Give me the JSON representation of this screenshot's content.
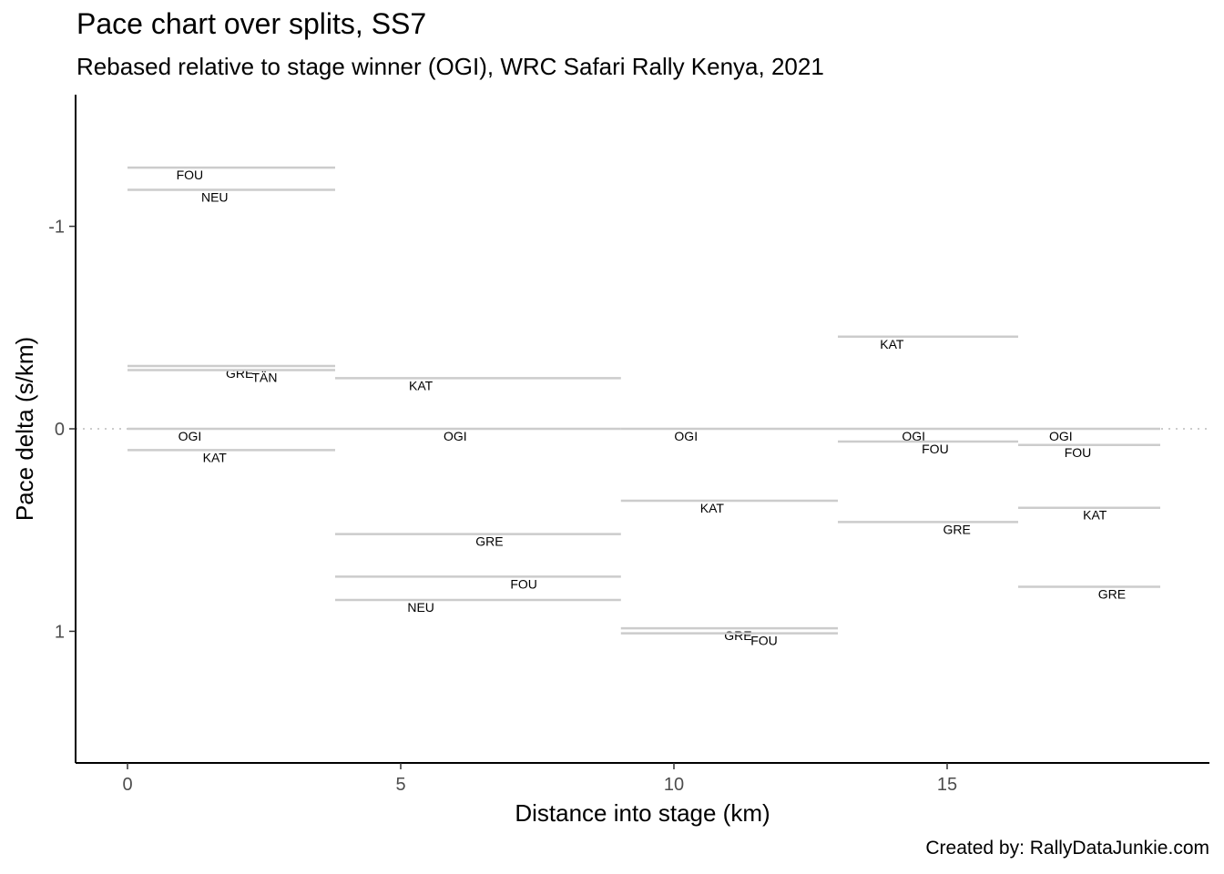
{
  "chart_data": {
    "type": "line",
    "title": "Pace chart over splits, SS7",
    "subtitle": "Rebased relative to stage winner (OGI), WRC Safari Rally Kenya, 2021",
    "xlabel": "Distance into stage (km)",
    "ylabel": "Pace delta (s/km)",
    "caption": "Created by: RallyDataJunkie.com",
    "xlim": [
      -0.95,
      19.8
    ],
    "ylim": [
      1.65,
      -1.65
    ],
    "y_reversed": true,
    "x_ticks": [
      0,
      5,
      10,
      15
    ],
    "y_ticks": [
      -1,
      0,
      1
    ],
    "reference_line": 0,
    "grid": false,
    "segment_color": "#cccccc",
    "segments": [
      {
        "driver": "FOU",
        "x_start": 0,
        "x_end": 3.8,
        "pace_delta": -1.29
      },
      {
        "driver": "NEU",
        "x_start": 0,
        "x_end": 3.8,
        "pace_delta": -1.18
      },
      {
        "driver": "GRE",
        "x_start": 0,
        "x_end": 3.8,
        "pace_delta": -0.31
      },
      {
        "driver": "TÄN",
        "x_start": 0,
        "x_end": 3.8,
        "pace_delta": -0.29
      },
      {
        "driver": "OGI",
        "x_start": 0,
        "x_end": 3.8,
        "pace_delta": 0
      },
      {
        "driver": "KAT",
        "x_start": 0,
        "x_end": 3.8,
        "pace_delta": 0.105
      },
      {
        "driver": "KAT",
        "x_start": 3.8,
        "x_end": 9.03,
        "pace_delta": -0.25
      },
      {
        "driver": "OGI",
        "x_start": 3.8,
        "x_end": 9.03,
        "pace_delta": 0
      },
      {
        "driver": "GRE",
        "x_start": 3.8,
        "x_end": 9.03,
        "pace_delta": 0.52
      },
      {
        "driver": "FOU",
        "x_start": 3.8,
        "x_end": 9.03,
        "pace_delta": 0.73
      },
      {
        "driver": "NEU",
        "x_start": 3.8,
        "x_end": 9.03,
        "pace_delta": 0.845
      },
      {
        "driver": "OGI",
        "x_start": 9.03,
        "x_end": 13.0,
        "pace_delta": 0
      },
      {
        "driver": "KAT",
        "x_start": 9.03,
        "x_end": 13.0,
        "pace_delta": 0.355
      },
      {
        "driver": "GRE",
        "x_start": 9.03,
        "x_end": 13.0,
        "pace_delta": 0.985
      },
      {
        "driver": "FOU",
        "x_start": 9.03,
        "x_end": 13.0,
        "pace_delta": 1.01
      },
      {
        "driver": "KAT",
        "x_start": 13.0,
        "x_end": 16.3,
        "pace_delta": -0.455
      },
      {
        "driver": "OGI",
        "x_start": 13.0,
        "x_end": 16.3,
        "pace_delta": 0
      },
      {
        "driver": "FOU",
        "x_start": 13.0,
        "x_end": 16.3,
        "pace_delta": 0.063
      },
      {
        "driver": "GRE",
        "x_start": 13.0,
        "x_end": 16.3,
        "pace_delta": 0.46
      },
      {
        "driver": "OGI",
        "x_start": 16.3,
        "x_end": 18.9,
        "pace_delta": 0
      },
      {
        "driver": "FOU",
        "x_start": 16.3,
        "x_end": 18.9,
        "pace_delta": 0.08
      },
      {
        "driver": "KAT",
        "x_start": 16.3,
        "x_end": 18.9,
        "pace_delta": 0.39
      },
      {
        "driver": "GRE",
        "x_start": 16.3,
        "x_end": 18.9,
        "pace_delta": 0.78
      }
    ]
  }
}
